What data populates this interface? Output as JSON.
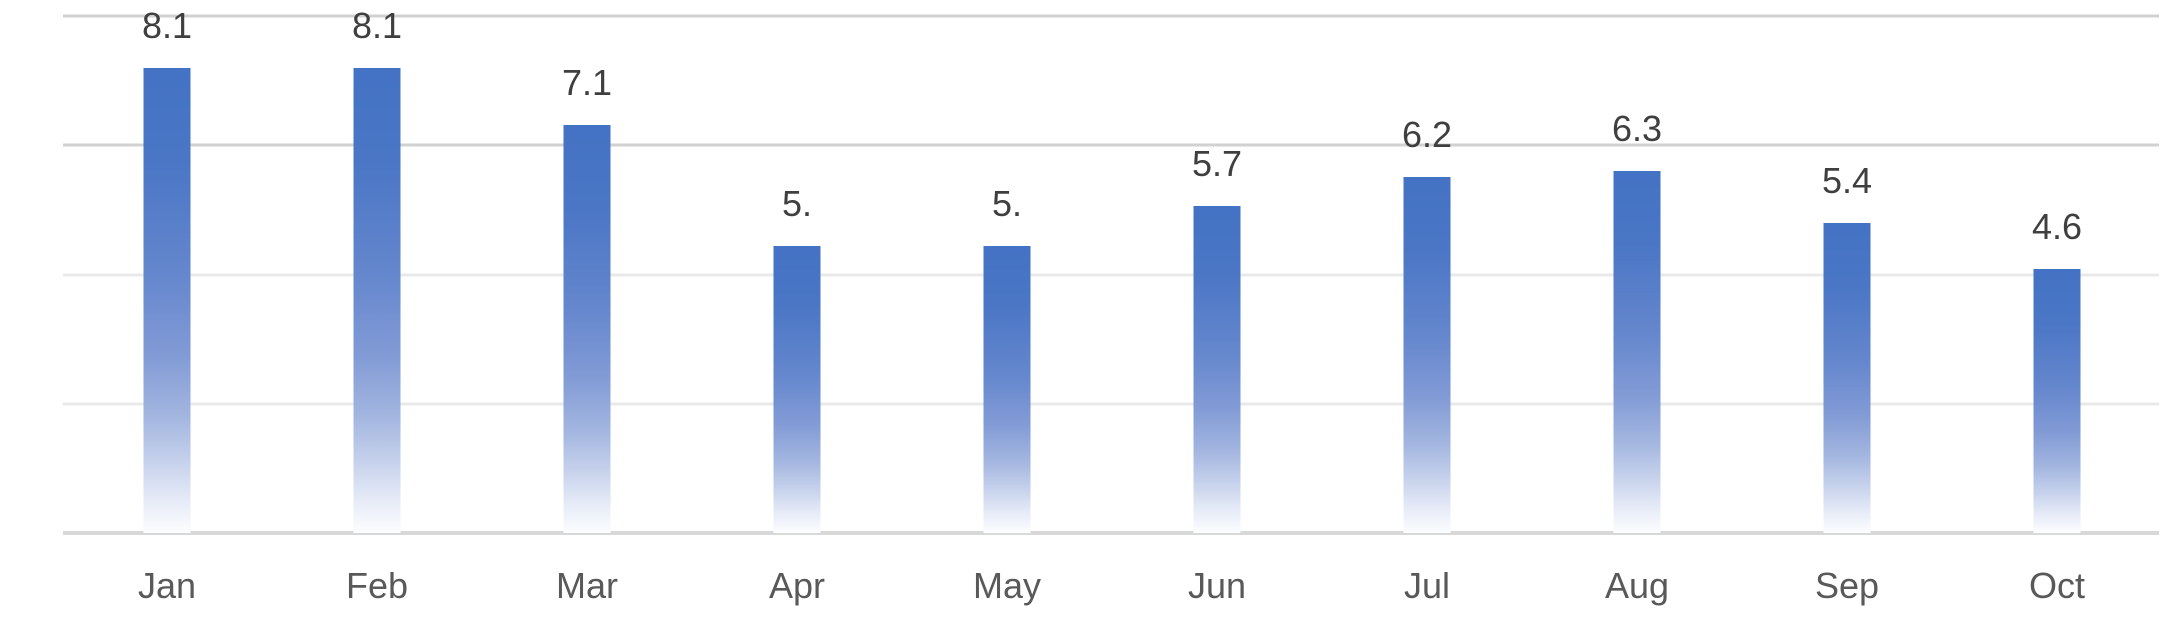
{
  "chart_data": {
    "type": "bar",
    "title": "",
    "xlabel": "",
    "ylabel": "",
    "categories": [
      "Jan",
      "Feb",
      "Mar",
      "Apr",
      "May",
      "Jun",
      "Jul",
      "Aug",
      "Sep",
      "Oct"
    ],
    "values": [
      8.1,
      8.1,
      7.1,
      5.0,
      5.0,
      5.7,
      6.2,
      6.3,
      5.4,
      4.6
    ],
    "value_labels": [
      "8.1",
      "8.1",
      "7.1",
      "5.",
      "5.",
      "5.7",
      "6.2",
      "6.3",
      "5.4",
      "4.6"
    ],
    "series_name": "",
    "ylim": [
      0,
      9
    ],
    "gridline_values": [
      9,
      6.75,
      4.5,
      2.25
    ],
    "grid": true,
    "legend": "none",
    "colors": {
      "bar_top": "#4472C4",
      "bar_bottom": "#FCFDFE",
      "value_label": "#3F3F3F",
      "category_label": "#595959",
      "gridline_upper": "#D1D1D1",
      "gridline_lower": "#E9E9E9",
      "axis_line": "#D8D8D8",
      "background": "#FFFFFF"
    }
  }
}
